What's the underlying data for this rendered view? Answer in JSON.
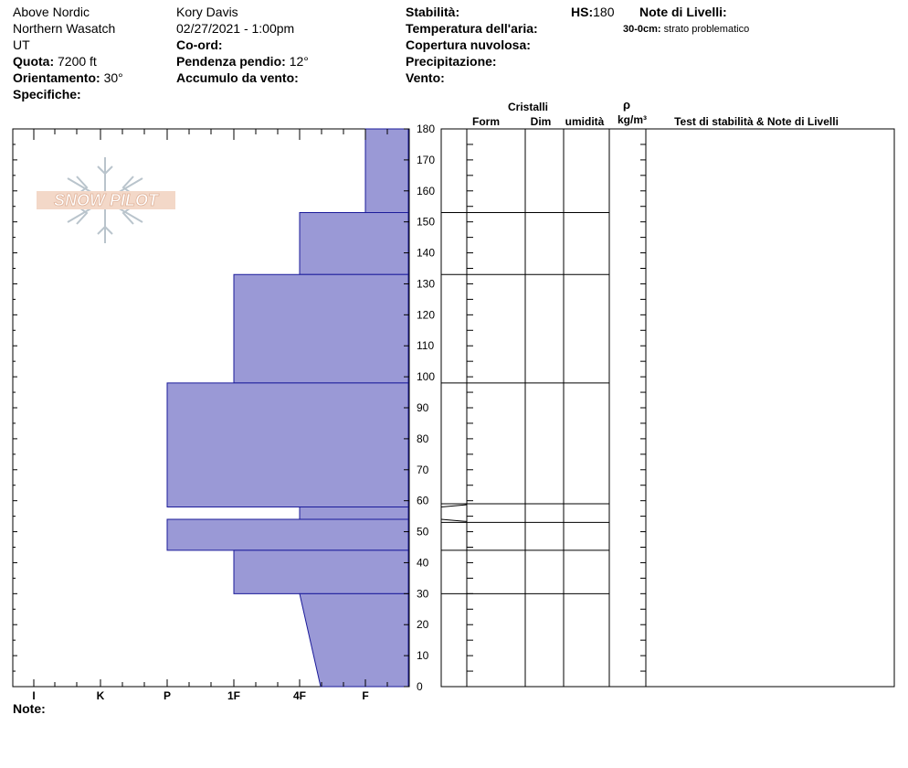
{
  "header": {
    "location": "Above Nordic",
    "region": "Northern Wasatch",
    "state": "UT",
    "quota_label": "Quota:",
    "quota_value": "7200 ft",
    "orientation_label": "Orientamento:",
    "orientation_value": "30°",
    "specifics_label": "Specifiche:",
    "observer": "Kory Davis",
    "datetime": "02/27/2021 - 1:00pm",
    "coord_label": "Co-ord:",
    "slope_label": "Pendenza pendio:",
    "slope_value": "12°",
    "wind_load_label": "Accumulo da vento:",
    "stability_label": "Stabilità:",
    "air_temp_label": "Temperatura dell'aria:",
    "cloud_label": "Copertura nuvolosa:",
    "precip_label": "Precipitazione:",
    "wind_label": "Vento:",
    "hs_label": "HS:",
    "hs_value": "180",
    "layer_notes_label": "Note di Livelli:",
    "layer_note_range": "30-0cm:",
    "layer_note_text": "strato problematico"
  },
  "columns": {
    "crystals": "Cristalli",
    "form": "Form",
    "dim": "Dim",
    "moisture": "umidità",
    "rho": "ρ",
    "density_unit": "kg/m³",
    "tests": "Test di stabilità & Note di Livelli"
  },
  "footer": {
    "notes_label": "Note:"
  },
  "logo": {
    "text": "SNOW PILOT"
  },
  "colors": {
    "layer_fill": "#9a99d6",
    "layer_stroke": "#1b1b9a",
    "grid": "#000000"
  },
  "chart_data": {
    "type": "bar",
    "ylabel": "",
    "ylim": [
      0,
      180
    ],
    "y_ticks": [
      0,
      10,
      20,
      30,
      40,
      50,
      60,
      70,
      80,
      90,
      100,
      110,
      120,
      130,
      140,
      150,
      160,
      170,
      180
    ],
    "hardness_scale": [
      "I",
      "K",
      "P",
      "1F",
      "4F",
      "F"
    ],
    "layers": [
      {
        "bottom": 153,
        "top": 180,
        "hardness_top": "F",
        "hardness_bottom": "F"
      },
      {
        "bottom": 133,
        "top": 153,
        "hardness_top": "4F",
        "hardness_bottom": "4F"
      },
      {
        "bottom": 98,
        "top": 133,
        "hardness_top": "1F",
        "hardness_bottom": "1F"
      },
      {
        "bottom": 58,
        "top": 98,
        "hardness_top": "P",
        "hardness_bottom": "P"
      },
      {
        "bottom": 54,
        "top": 58,
        "hardness_top": "4F",
        "hardness_bottom": "4F"
      },
      {
        "bottom": 44,
        "top": 54,
        "hardness_top": "P",
        "hardness_bottom": "P"
      },
      {
        "bottom": 30,
        "top": 44,
        "hardness_top": "1F",
        "hardness_bottom": "1F"
      },
      {
        "bottom": 0,
        "top": 30,
        "hardness_top": "4F",
        "hardness_bottom": "4F-F"
      }
    ],
    "crystal_boundaries": [
      180,
      153,
      133,
      98,
      59,
      53,
      44,
      30
    ]
  }
}
